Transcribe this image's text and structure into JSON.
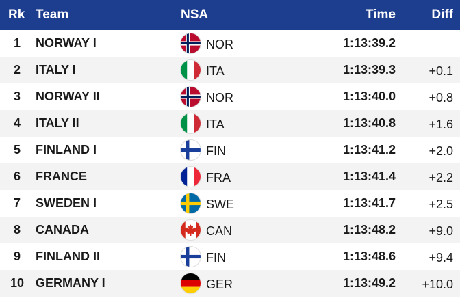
{
  "header": {
    "rank": "Rk",
    "team": "Team",
    "nsa": "NSA",
    "time": "Time",
    "diff": "Diff"
  },
  "rows": [
    {
      "rank": 1,
      "team": "NORWAY I",
      "nsa": "NOR",
      "time": "1:13:39.2"
    },
    {
      "rank": 2,
      "team": "ITALY I",
      "nsa": "ITA",
      "time": "1:13:39.3",
      "diff": "+0.1"
    },
    {
      "rank": 3,
      "team": "NORWAY II",
      "nsa": "NOR",
      "time": "1:13:40.0",
      "diff": "+0.8"
    },
    {
      "rank": 4,
      "team": "ITALY II",
      "nsa": "ITA",
      "time": "1:13:40.8",
      "diff": "+1.6"
    },
    {
      "rank": 5,
      "team": "FINLAND I",
      "nsa": "FIN",
      "time": "1:13:41.2",
      "diff": "+2.0"
    },
    {
      "rank": 6,
      "team": "FRANCE",
      "nsa": "FRA",
      "time": "1:13:41.4",
      "diff": "+2.2"
    },
    {
      "rank": 7,
      "team": "SWEDEN I",
      "nsa": "SWE",
      "time": "1:13:41.7",
      "diff": "+2.5"
    },
    {
      "rank": 8,
      "team": "CANADA",
      "nsa": "CAN",
      "time": "1:13:48.2",
      "diff": "+9.0"
    },
    {
      "rank": 9,
      "team": "FINLAND II",
      "nsa": "FIN",
      "time": "1:13:48.6",
      "diff": "+9.4"
    },
    {
      "rank": 10,
      "team": "GERMANY I",
      "nsa": "GER",
      "time": "1:13:49.2",
      "diff": "+10.0"
    }
  ]
}
